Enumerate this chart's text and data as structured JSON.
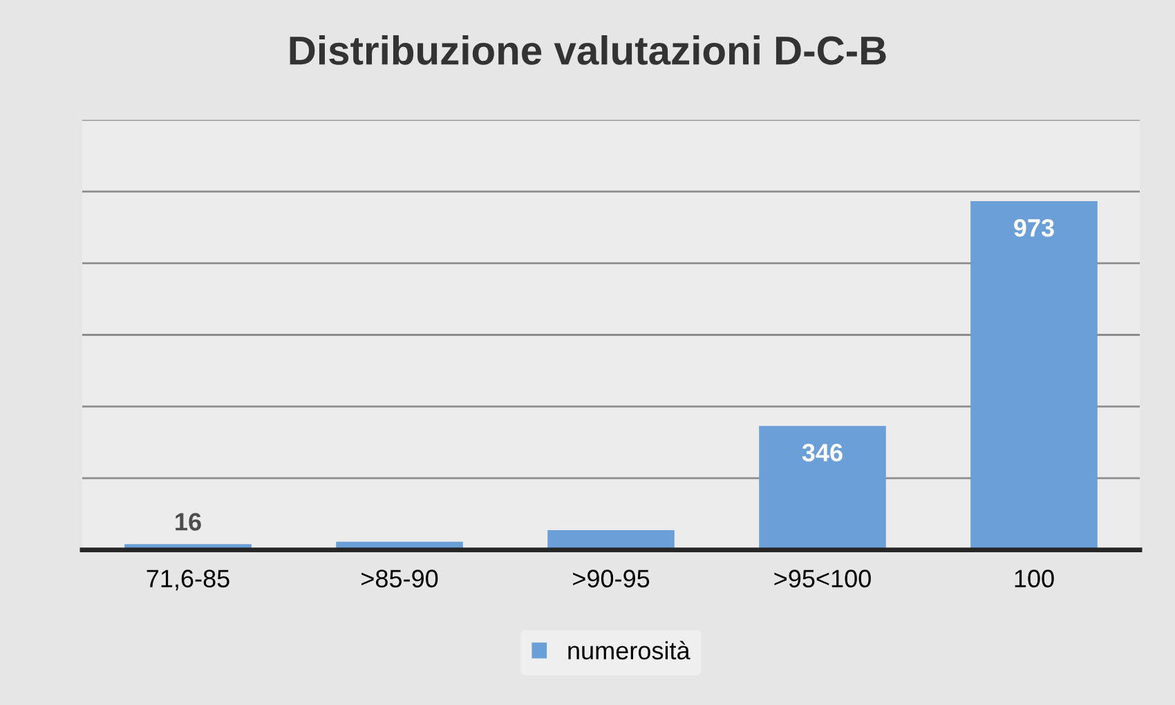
{
  "chart_data": {
    "type": "bar",
    "title": "Distribuzione valutazioni D-C-B",
    "categories": [
      "71,6-85",
      ">85-90",
      ">90-95",
      ">95<100",
      "100"
    ],
    "series": [
      {
        "name": "numerosità",
        "color": "#6a9fd8",
        "values": [
          16,
          23,
          55,
          346,
          973
        ],
        "value_labels": [
          "16",
          null,
          null,
          "346",
          "973"
        ]
      }
    ],
    "ylim": [
      0,
      1200
    ],
    "yticks": [
      {
        "value": 0,
        "label": null
      },
      {
        "value": 200,
        "label": null
      },
      {
        "value": 400,
        "label": null
      },
      {
        "value": 600,
        "label": null
      },
      {
        "value": 800,
        "label": null
      },
      {
        "value": 1000,
        "label": null
      },
      {
        "value": 1200,
        "label": null
      }
    ],
    "grid": "y",
    "legend": "bottom",
    "tick_labels": "x"
  }
}
